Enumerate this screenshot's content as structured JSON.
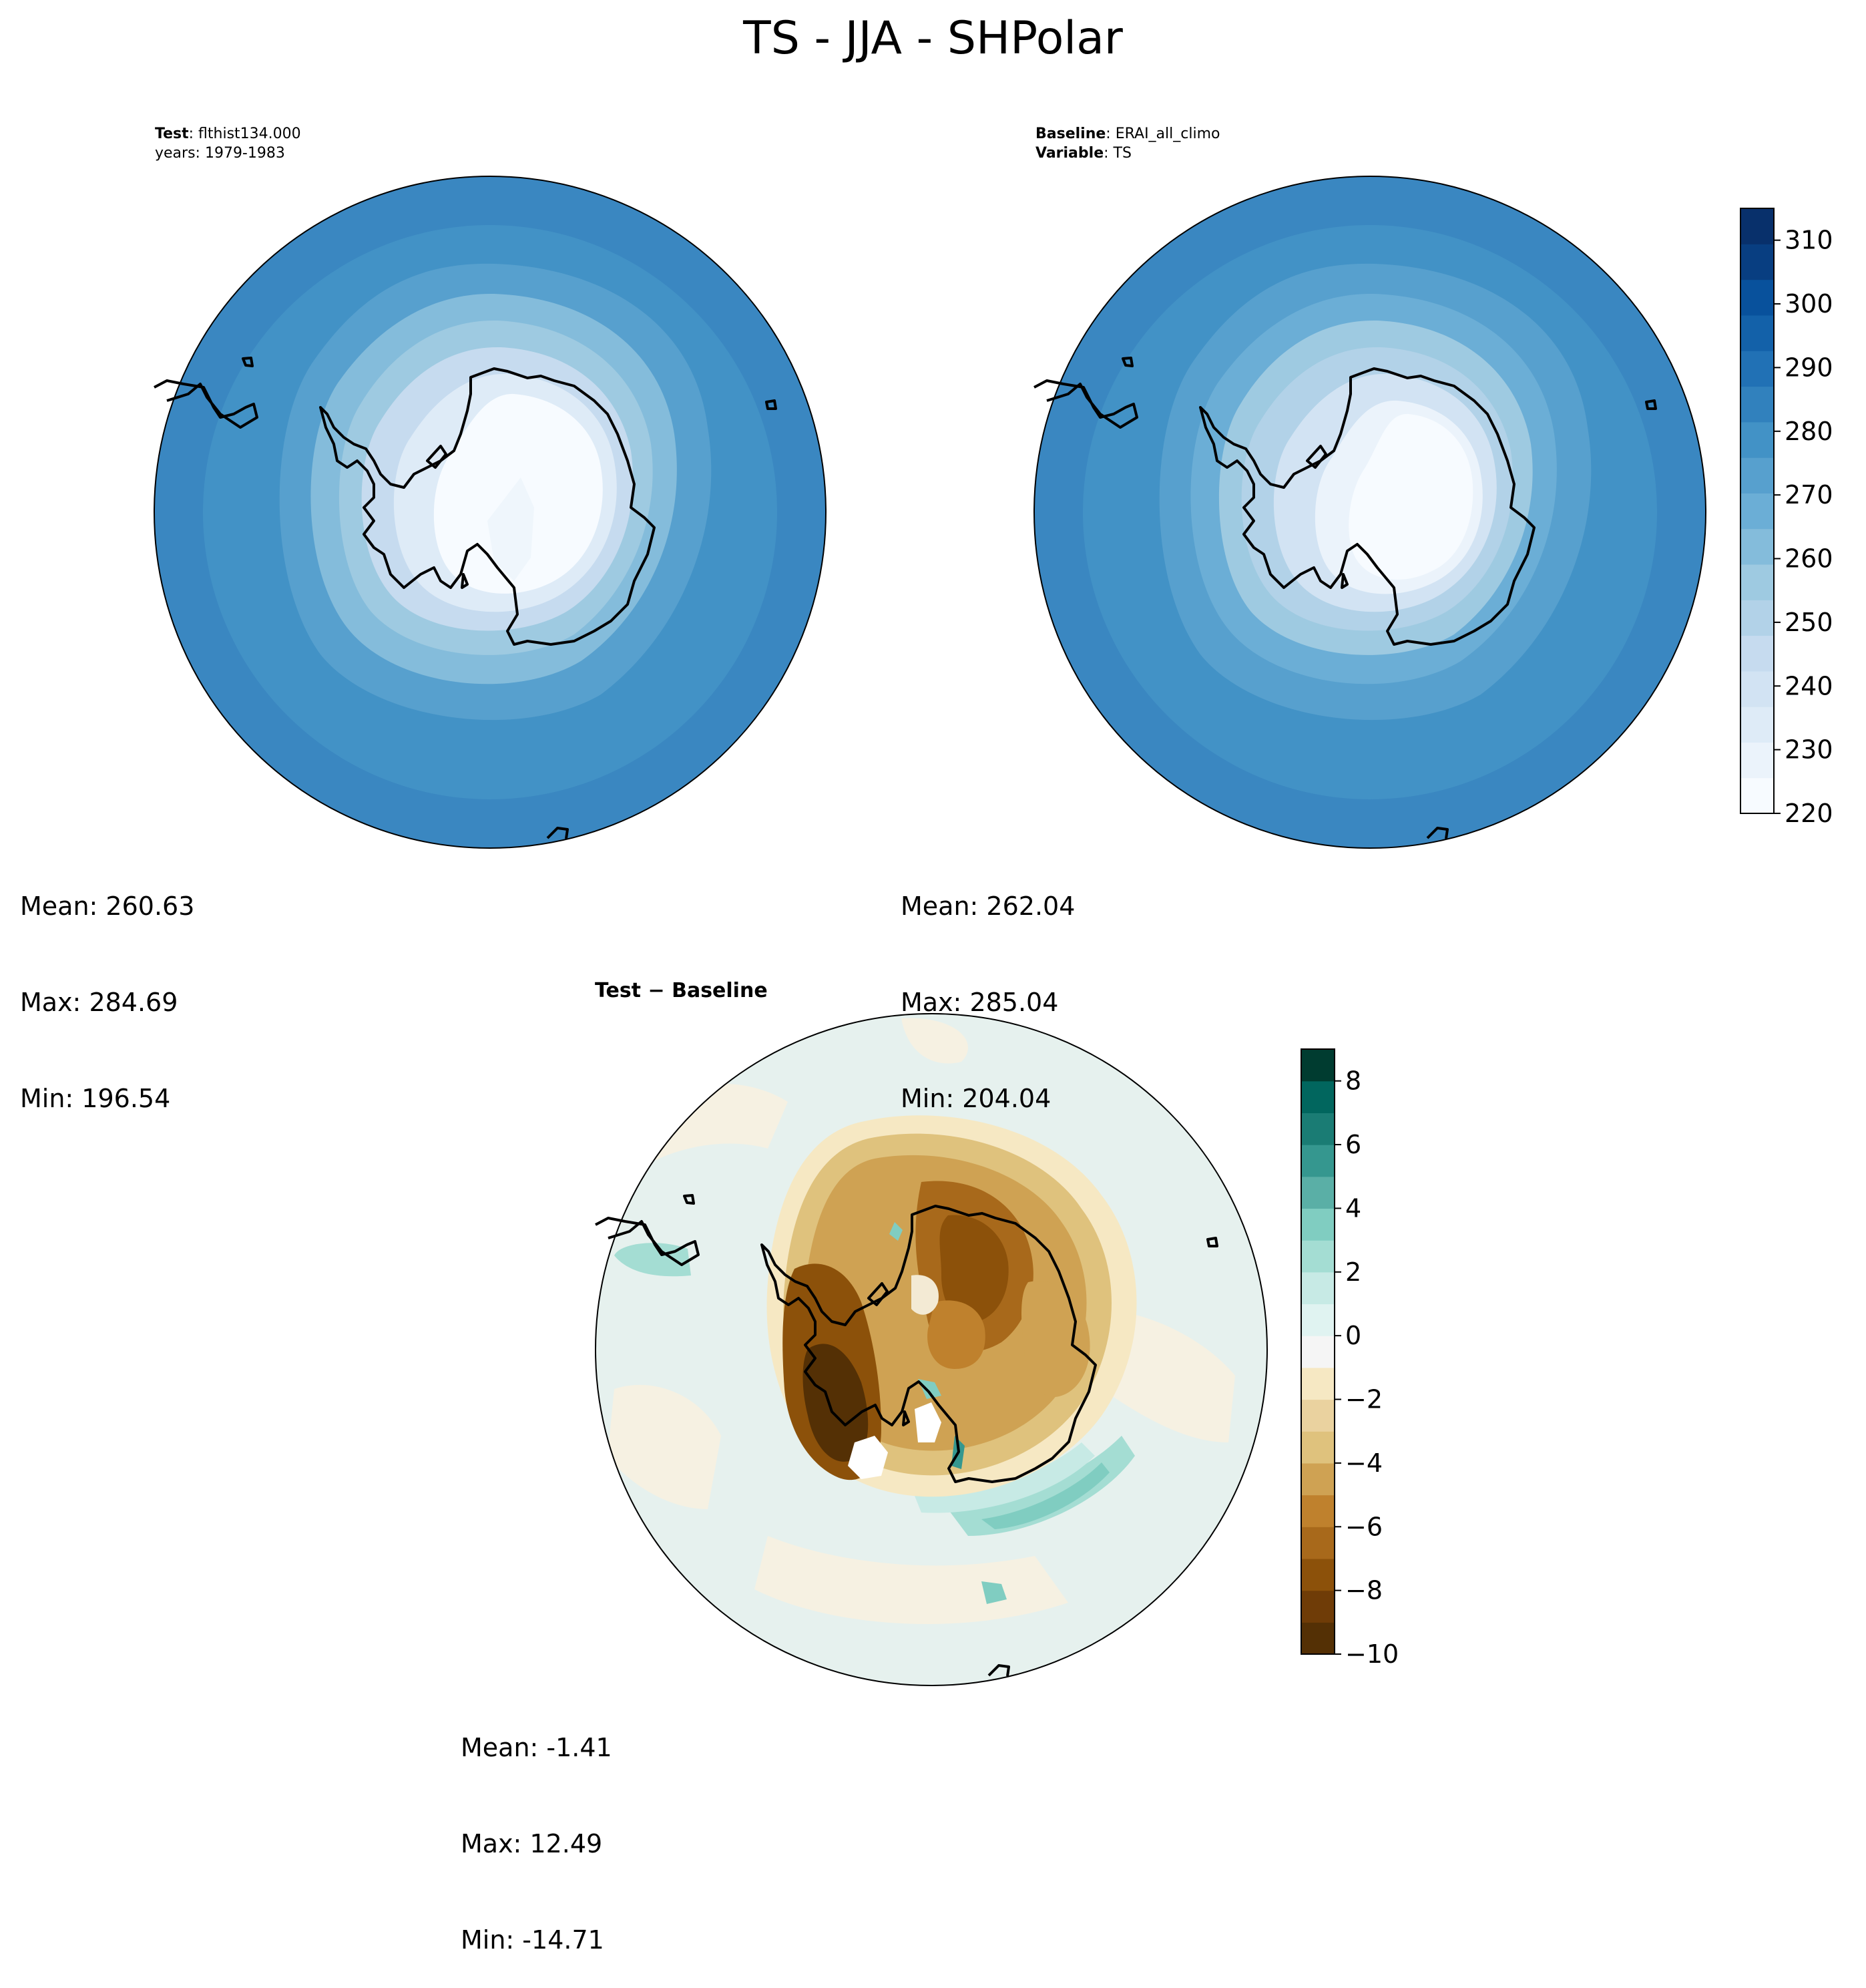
{
  "title": "TS - JJA - SHPolar",
  "test_panel": {
    "label_bold": "Test",
    "label_sep": ":",
    "label_value": "flthist134.000",
    "years": "years: 1979-1983",
    "stats": {
      "mean": "Mean: 260.63",
      "max": "Max: 284.69",
      "min": "Min: 196.54"
    }
  },
  "baseline_panel": {
    "baseline_bold": "Baseline",
    "baseline_sep": ":",
    "baseline_value": "ERAI_all_climo",
    "variable_bold": "Variable",
    "variable_sep": ":",
    "variable_value": "TS",
    "stats": {
      "mean": "Mean: 262.04",
      "max": "Max: 285.04",
      "min": "Min: 204.04"
    }
  },
  "diff_panel": {
    "title_test": "Test",
    "title_minus": "−",
    "title_baseline": "Baseline",
    "stats": {
      "mean": "Mean: -1.41",
      "max": "Max: 12.49",
      "min": "Min: -14.71"
    }
  },
  "colors": {
    "field_colorbar": [
      "#f7fbff",
      "#ebf3fb",
      "#deebf7",
      "#d2e3f3",
      "#c6dbef",
      "#b2d2e8",
      "#9ecae1",
      "#84bcdb",
      "#6baed6",
      "#57a0ce",
      "#4292c6",
      "#3181bd",
      "#2171b5",
      "#1361a9",
      "#08519c",
      "#083e81",
      "#08306b"
    ],
    "diff_colorbar": [
      "#543005",
      "#6f3c07",
      "#8c510a",
      "#a8691b",
      "#bf812d",
      "#cfa253",
      "#dfc27d",
      "#ead29f",
      "#f6e8c3",
      "#f5f5f5",
      "#e0f3f1",
      "#c7eae5",
      "#a4ddd3",
      "#80cdc1",
      "#5aafa6",
      "#35978f",
      "#1a7c74",
      "#01665e",
      "#003c30"
    ]
  },
  "chart_data": [
    {
      "type": "heatmap",
      "name": "test",
      "projection": "south-polar-stereographic",
      "variable": "TS",
      "season": "JJA",
      "stats": {
        "mean": 260.63,
        "max": 284.69,
        "min": 196.54
      },
      "colorbar": "shared-right"
    },
    {
      "type": "heatmap",
      "name": "baseline",
      "projection": "south-polar-stereographic",
      "variable": "TS",
      "season": "JJA",
      "stats": {
        "mean": 262.04,
        "max": 285.04,
        "min": 204.04
      },
      "colorbar": {
        "range": [
          220,
          315
        ],
        "ticks": [
          220,
          230,
          240,
          250,
          260,
          270,
          280,
          290,
          300,
          310
        ],
        "tick_labels": [
          "220",
          "230",
          "240",
          "250",
          "260",
          "270",
          "280",
          "290",
          "300",
          "310"
        ],
        "levels": 17
      }
    },
    {
      "type": "heatmap",
      "name": "test-minus-baseline",
      "projection": "south-polar-stereographic",
      "stats": {
        "mean": -1.41,
        "max": 12.49,
        "min": -14.71
      },
      "colorbar": {
        "range": [
          -10,
          9
        ],
        "ticks": [
          -10,
          -8,
          -6,
          -4,
          -2,
          0,
          2,
          4,
          6,
          8
        ],
        "tick_labels": [
          "−10",
          "−8",
          "−6",
          "−4",
          "−2",
          "0",
          "2",
          "4",
          "6",
          "8"
        ],
        "levels": 19
      }
    }
  ]
}
